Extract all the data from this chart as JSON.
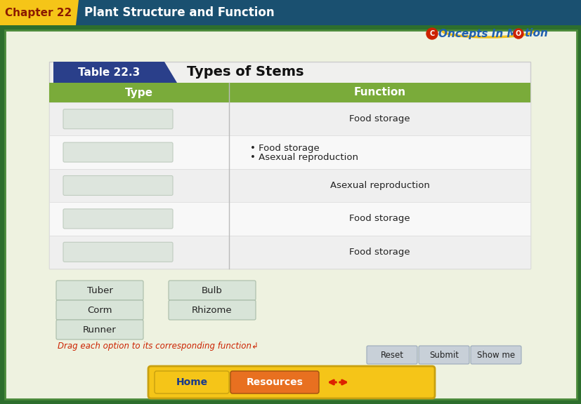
{
  "title_chapter": "Chapter 22",
  "title_main": "Plant Structure and Function",
  "table_label": "Table 22.3",
  "table_title": "Types of Stems",
  "col_headers": [
    "Type",
    "Function"
  ],
  "row_functions": [
    "Food storage",
    "• Food storage\n• Asexual reproduction",
    "Asexual reproduction",
    "Food storage",
    "Food storage"
  ],
  "drag_items": [
    "Tuber",
    "Bulb",
    "Corm",
    "Rhizome",
    "Runner"
  ],
  "drag_instruction": "Drag each option to its corresponding function↲",
  "button_labels": [
    "Reset",
    "Submit",
    "Show me"
  ],
  "nav_labels": [
    "Home",
    "Resources"
  ],
  "bg_outer": "#2d6e2d",
  "bg_inner": "#eef2e0",
  "header_bar_color": "#1a5070",
  "chapter_bg": "#f5c518",
  "chapter_text": "#8b1a00",
  "table_bg": "#f0f0ee",
  "table_border": "#cccccc",
  "table_label_bg": "#2a3f8a",
  "table_header_bg": "#7aab3a",
  "table_header_text": "#ffffff",
  "table_row_bg_odd": "#efefef",
  "table_row_bg_even": "#f8f8f8",
  "type_box_color": "#dde5dd",
  "type_box_border": "#c0ccc0",
  "drag_btn_bg": "#d8e4d8",
  "drag_btn_border": "#a8bca8",
  "bottom_btn_bg": "#c8d0d8",
  "bottom_btn_border": "#9aaabb",
  "home_btn_bg": "#f5c518",
  "resources_btn_bg": "#e87020",
  "nav_bar_bg": "#f5c518",
  "arrow_color": "#dd2200",
  "drag_instruction_color": "#cc2200",
  "concepts_color": "#2060b0"
}
